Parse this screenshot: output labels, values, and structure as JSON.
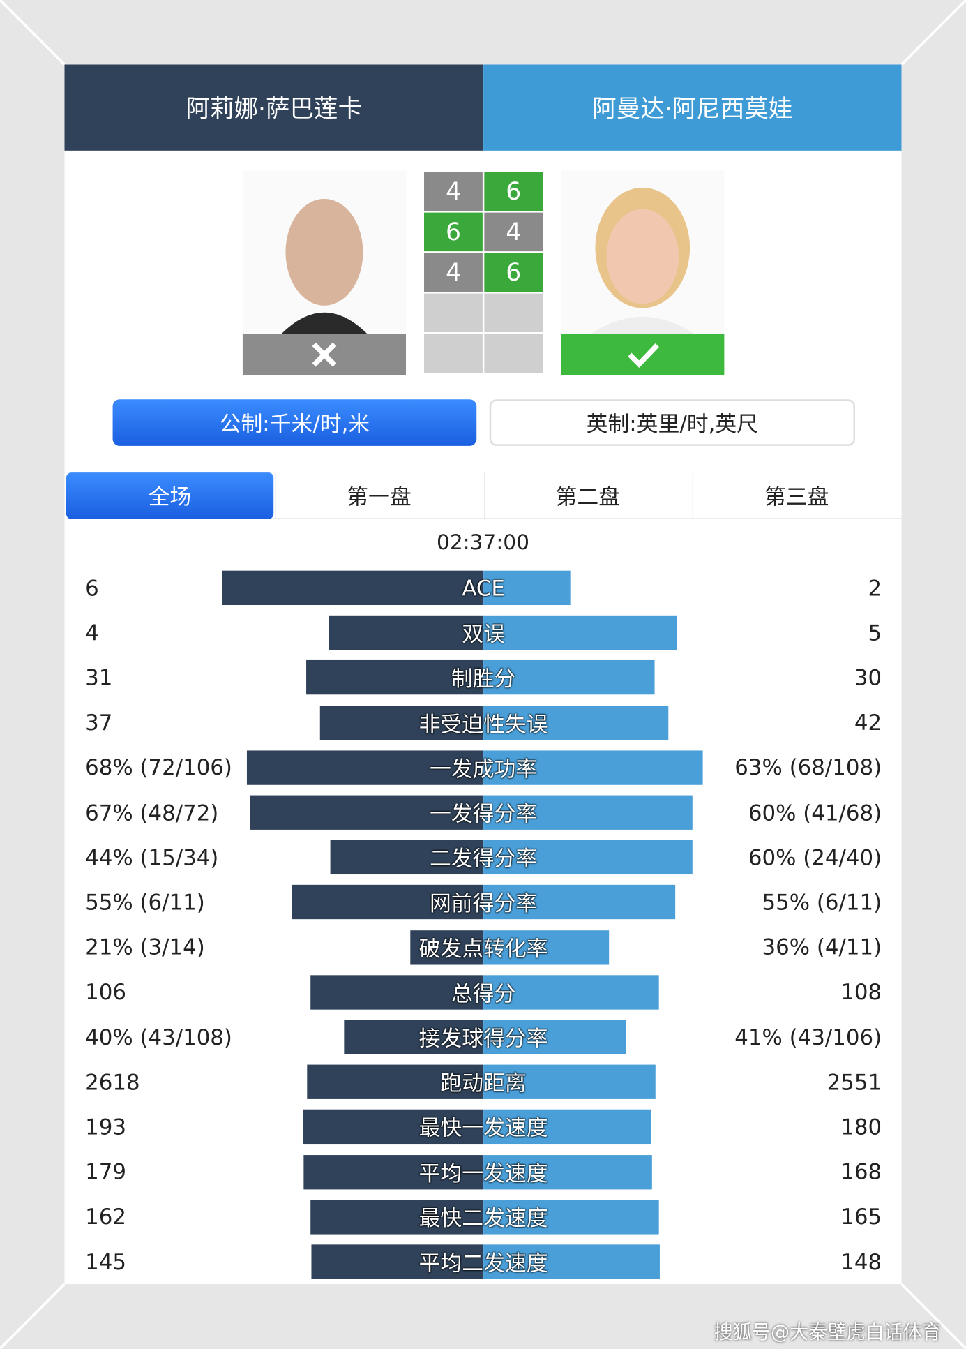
{
  "header": {
    "player1": "阿莉娜·萨巴莲卡",
    "player2": "阿曼达·阿尼西莫娃"
  },
  "scores": {
    "player1": [
      4,
      6,
      4
    ],
    "player2": [
      6,
      4,
      6
    ]
  },
  "units": [
    "公制:千米/时,米",
    "英制:英里/时,英尺"
  ],
  "tabs": [
    "全场",
    "第一盘",
    "第二盘",
    "第三盘"
  ],
  "duration": "02:37:00",
  "stats": [
    {
      "label": "ACE",
      "left": 6,
      "right": 2
    },
    {
      "label": "双误",
      "left": 4,
      "right": 5
    },
    {
      "label": "制胜分",
      "left": 31,
      "right": 30
    },
    {
      "label": "非受迫性失误",
      "left": 37,
      "right": 42
    },
    {
      "label": "一发成功率",
      "left": 68,
      "left_label": "68% (72/106)",
      "right": 63,
      "right_label": "63% (68/108)"
    },
    {
      "label": "一发得分率",
      "left": 67,
      "left_label": "67% (48/72)",
      "right": 60,
      "right_label": "60% (41/68)"
    },
    {
      "label": "二发得分率",
      "left": 44,
      "left_label": "44% (15/34)",
      "right": 60,
      "right_label": "60% (24/40)"
    },
    {
      "label": "网前得分率",
      "left": 55,
      "left_label": "55% (6/11)",
      "right": 55,
      "right_label": "55% (6/11)"
    },
    {
      "label": "破发点转化率",
      "left": 21,
      "left_label": "21% (3/14)",
      "right": 36,
      "right_label": "36% (4/11)"
    },
    {
      "label": "总得分",
      "left": 106,
      "right": 108
    },
    {
      "label": "接发球得分率",
      "left": 40,
      "left_label": "40% (43/108)",
      "right": 41,
      "right_label": "41% (43/106)"
    },
    {
      "label": "跑动距离",
      "left": 2618,
      "right": 2551
    },
    {
      "label": "最快一发速度",
      "left": 193,
      "right": 180
    },
    {
      "label": "平均一发速度",
      "left": 179,
      "right": 168
    },
    {
      "label": "最快二发速度",
      "left": 162,
      "right": 165
    },
    {
      "label": "平均二发速度",
      "left": 145,
      "right": 148
    }
  ],
  "watermark": "搜狐号@大秦壁虎白话体育"
}
